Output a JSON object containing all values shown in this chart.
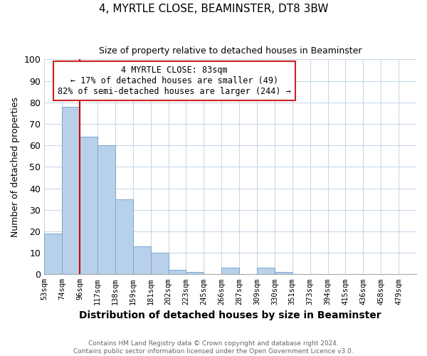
{
  "title": "4, MYRTLE CLOSE, BEAMINSTER, DT8 3BW",
  "subtitle": "Size of property relative to detached houses in Beaminster",
  "xlabel": "Distribution of detached houses by size in Beaminster",
  "ylabel": "Number of detached properties",
  "bin_labels": [
    "53sqm",
    "74sqm",
    "96sqm",
    "117sqm",
    "138sqm",
    "159sqm",
    "181sqm",
    "202sqm",
    "223sqm",
    "245sqm",
    "266sqm",
    "287sqm",
    "309sqm",
    "330sqm",
    "351sqm",
    "373sqm",
    "394sqm",
    "415sqm",
    "436sqm",
    "458sqm",
    "479sqm"
  ],
  "bar_heights": [
    19,
    78,
    64,
    60,
    35,
    13,
    10,
    2,
    1,
    0,
    3,
    0,
    3,
    1,
    0,
    0,
    0,
    0,
    0,
    0,
    0
  ],
  "bar_color": "#b8d0ea",
  "bar_edge_color": "#7aa8cc",
  "subject_line_color": "#cc0000",
  "annotation_line1": "4 MYRTLE CLOSE: 83sqm",
  "annotation_line2": "← 17% of detached houses are smaller (49)",
  "annotation_line3": "82% of semi-detached houses are larger (244) →",
  "annotation_box_edge_color": "#cc2222",
  "ylim": [
    0,
    100
  ],
  "yticks": [
    0,
    10,
    20,
    30,
    40,
    50,
    60,
    70,
    80,
    90,
    100
  ],
  "footer_text": "Contains HM Land Registry data © Crown copyright and database right 2024.\nContains public sector information licensed under the Open Government Licence v3.0.",
  "background_color": "#ffffff",
  "grid_color": "#c8d8e8"
}
